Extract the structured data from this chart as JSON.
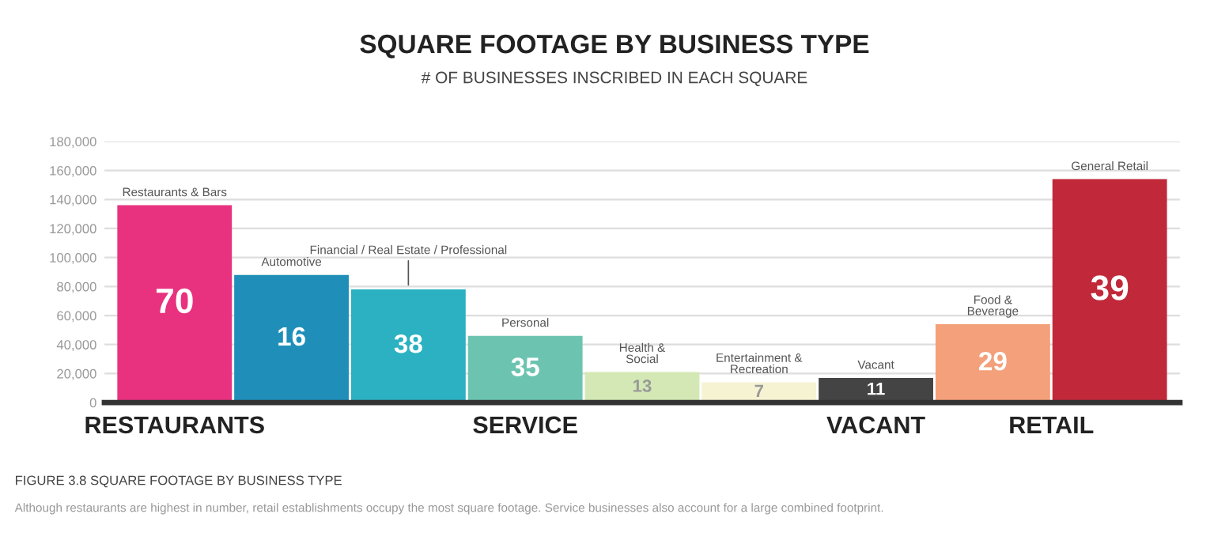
{
  "chart_data": {
    "type": "bar",
    "title": "SQUARE FOOTAGE BY BUSINESS TYPE",
    "subtitle": "# OF BUSINESSES INSCRIBED IN EACH SQUARE",
    "categories": [
      "Restaurants & Bars",
      "Automotive",
      "Financial / Real Estate / Professional",
      "Personal",
      "Health &\nSocial",
      "Entertainment &\nRecreation",
      "Vacant",
      "Food &\nBeverage",
      "General Retail"
    ],
    "values": [
      136000,
      88000,
      78000,
      46000,
      21000,
      14000,
      17000,
      54000,
      154000
    ],
    "colors": [
      "#e8327f",
      "#1f8fb9",
      "#2bb1c1",
      "#6cc4b0",
      "#d3e8b4",
      "#f5f3d2",
      "#444444",
      "#f4a07a",
      "#c1283a"
    ],
    "ylim": [
      0,
      180000
    ],
    "yticks": [
      {
        "value": 0,
        "label": "0"
      },
      {
        "value": 20000,
        "label": "20,000"
      },
      {
        "value": 40000,
        "label": "40,000"
      },
      {
        "value": 60000,
        "label": "60,000"
      },
      {
        "value": 80000,
        "label": "80,000"
      },
      {
        "value": 100000,
        "label": "100,000"
      },
      {
        "value": 120000,
        "label": "120,000"
      },
      {
        "value": 140000,
        "label": "140,000"
      },
      {
        "value": 160000,
        "label": "160,000"
      },
      {
        "value": 180000,
        "label": "180,000"
      }
    ],
    "grid": "y",
    "annotations": [
      {
        "text": "70",
        "x": "Restaurants & Bars",
        "y": 136000
      },
      {
        "text": "16",
        "x": "Automotive",
        "y": 88000
      },
      {
        "text": "38",
        "x": "Financial / Real Estate / Professional",
        "y": 78000
      },
      {
        "text": "35",
        "x": "Personal",
        "y": 46000
      },
      {
        "text": "13",
        "x": "Health &\nSocial",
        "y": 21000
      },
      {
        "text": "7",
        "x": "Entertainment &\nRecreation",
        "y": 14000
      },
      {
        "text": "11",
        "x": "Vacant",
        "y": 17000
      },
      {
        "text": "29",
        "x": "Food &\nBeverage",
        "y": 54000
      },
      {
        "text": "39",
        "x": "General Retail",
        "y": 154000
      },
      "RESTAURANTS",
      "SERVICE",
      "VACANT",
      "RETAIL",
      "FIGURE 3.8 SQUARE FOOTAGE BY BUSINESS TYPE",
      "Although restaurants are highest in number, retail establishments occupy the most square footage. Service businesses also account for a large combined footprint."
    ]
  }
}
